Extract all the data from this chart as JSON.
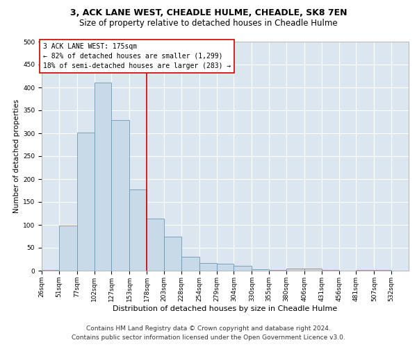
{
  "title": "3, ACK LANE WEST, CHEADLE HULME, CHEADLE, SK8 7EN",
  "subtitle": "Size of property relative to detached houses in Cheadle Hulme",
  "xlabel": "Distribution of detached houses by size in Cheadle Hulme",
  "ylabel": "Number of detached properties",
  "footer1": "Contains HM Land Registry data © Crown copyright and database right 2024.",
  "footer2": "Contains public sector information licensed under the Open Government Licence v3.0.",
  "bin_labels": [
    "26sqm",
    "51sqm",
    "77sqm",
    "102sqm",
    "127sqm",
    "153sqm",
    "178sqm",
    "203sqm",
    "228sqm",
    "254sqm",
    "279sqm",
    "304sqm",
    "330sqm",
    "355sqm",
    "380sqm",
    "406sqm",
    "431sqm",
    "456sqm",
    "481sqm",
    "507sqm",
    "532sqm"
  ],
  "bar_values": [
    2,
    99,
    302,
    411,
    329,
    178,
    113,
    75,
    30,
    16,
    15,
    10,
    3,
    2,
    5,
    5,
    1,
    0,
    2,
    1,
    0
  ],
  "bar_color": "#c8d9e8",
  "bar_edge_color": "#6699bb",
  "property_line_x": 178,
  "bin_edges": [
    26,
    51,
    77,
    102,
    127,
    153,
    178,
    203,
    228,
    254,
    279,
    304,
    330,
    355,
    380,
    406,
    431,
    456,
    481,
    507,
    532,
    557
  ],
  "annotation_text1": "3 ACK LANE WEST: 175sqm",
  "annotation_text2": "← 82% of detached houses are smaller (1,299)",
  "annotation_text3": "18% of semi-detached houses are larger (283) →",
  "annotation_box_color": "#cc0000",
  "vline_color": "#cc0000",
  "ylim": [
    0,
    500
  ],
  "yticks": [
    0,
    50,
    100,
    150,
    200,
    250,
    300,
    350,
    400,
    450,
    500
  ],
  "background_color": "#dce6f0",
  "grid_color": "#ffffff",
  "title_fontsize": 9,
  "subtitle_fontsize": 8.5,
  "xlabel_fontsize": 8,
  "ylabel_fontsize": 7.5,
  "tick_fontsize": 6.5,
  "annotation_fontsize": 7,
  "footer_fontsize": 6.5
}
